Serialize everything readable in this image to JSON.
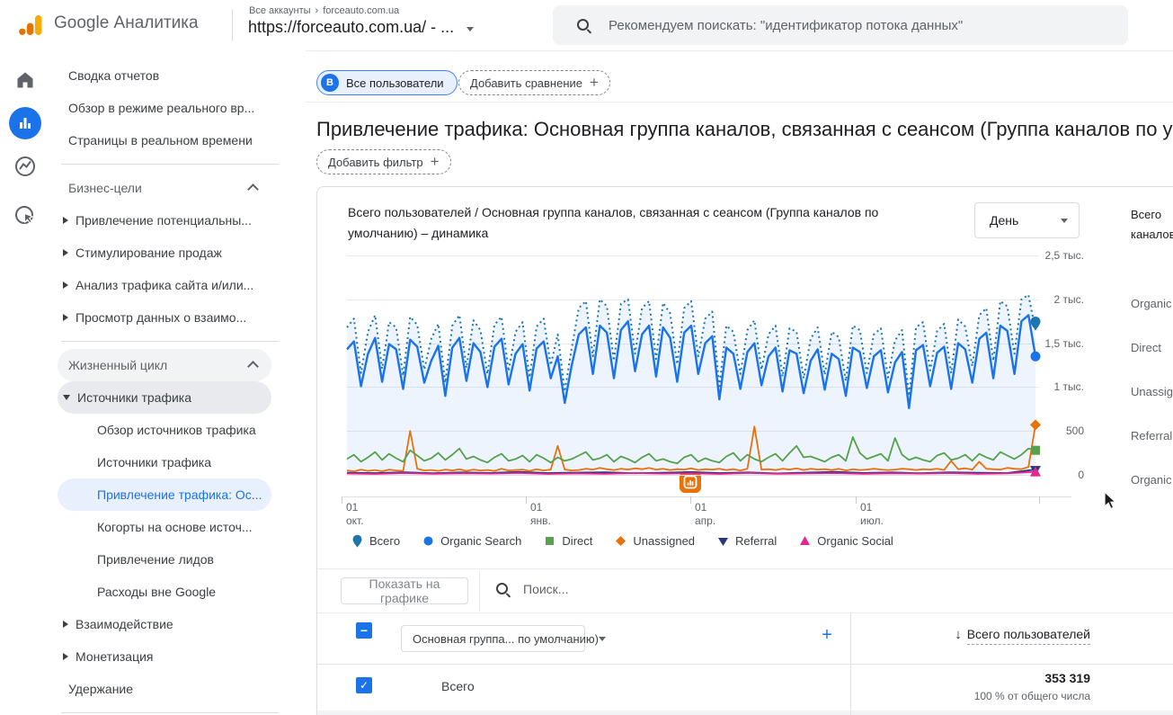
{
  "icons": {
    "plus": "+",
    "sort_desc": "↓",
    "check": "✓",
    "indeterminate": "−",
    "breadcrumb_chevron": "›"
  },
  "topbar": {
    "product": "Google Аналитика",
    "breadcrumb_root": "Все аккаунты",
    "breadcrumb_entity": "forceauto.com.ua",
    "property": "https://forceauto.com.ua/ - ...",
    "search_placeholder": "Рекомендуем поискать: \"идентификатор потока данных\""
  },
  "header": {
    "audience_chip_avatar": "В",
    "audience_chip": "Все пользователи",
    "add_comparison_label": "Добавить сравнение",
    "page_title": "Привлечение трафика: Основная группа каналов, связанная с сеансом (Группа каналов по умолчанию)",
    "add_filter_label": "Добавить фильтр"
  },
  "sidebar": {
    "rows": [
      {
        "type": "item",
        "label": "Сводка отчетов"
      },
      {
        "type": "item",
        "label": "Обзор в режиме реального вр..."
      },
      {
        "type": "item",
        "label": "Страницы в реальном времени"
      },
      {
        "type": "divider"
      },
      {
        "type": "header",
        "label": "Бизнес-цели"
      },
      {
        "type": "item",
        "label": "Привлечение потенциальны...",
        "arrow": "right"
      },
      {
        "type": "item",
        "label": "Стимулирование продаж",
        "arrow": "right"
      },
      {
        "type": "item",
        "label": "Анализ трафика сайта и/или...",
        "arrow": "right"
      },
      {
        "type": "item",
        "label": "Просмотр данных о взаимо...",
        "arrow": "right"
      },
      {
        "type": "divider"
      },
      {
        "type": "header",
        "label": "Жизненный цикл",
        "bg": "light"
      },
      {
        "type": "item",
        "label": "Источники трафика",
        "arrow": "down",
        "bg": "gray"
      },
      {
        "type": "item",
        "label": "Обзор источников трафика",
        "sub": true
      },
      {
        "type": "item",
        "label": "Источники трафика",
        "sub": true
      },
      {
        "type": "item",
        "label": "Привлечение трафика: Ос...",
        "sub": true,
        "selected": true
      },
      {
        "type": "item",
        "label": "Когорты на основе источ...",
        "sub": true
      },
      {
        "type": "item",
        "label": "Привлечение лидов",
        "sub": true
      },
      {
        "type": "item",
        "label": "Расходы вне Google",
        "sub": true
      },
      {
        "type": "item",
        "label": "Взаимодействие",
        "arrow": "right"
      },
      {
        "type": "item",
        "label": "Монетизация",
        "arrow": "right"
      },
      {
        "type": "item",
        "label": "Удержание"
      },
      {
        "type": "divider"
      }
    ]
  },
  "chart_card": {
    "granularity": "День",
    "right_panel": {
      "title": "Всего каналов",
      "items": [
        "Organic Search",
        "Direct",
        "Unassigned",
        "Referral",
        "Organic Social"
      ]
    }
  },
  "chart_data": {
    "type": "line",
    "title": "Всего пользователей / Основная группа каналов, связанная с сеансом (Группа каналов по умолчанию) – динамика",
    "x_axis": {
      "ticks": [
        {
          "f": 0,
          "label": "01 окт."
        },
        {
          "f": 0.264,
          "label": "01 янв."
        },
        {
          "f": 0.5,
          "label": "01 апр."
        },
        {
          "f": 0.737,
          "label": "01 июл."
        },
        {
          "f": 1,
          "label": ""
        }
      ]
    },
    "y_axis": {
      "max": 2500,
      "labels": [
        "0",
        "500",
        "1 тыс.",
        "1,5 тыс.",
        "2 тыс.",
        "2,5 тыс."
      ]
    },
    "annotation": {
      "x_fraction": 0.5,
      "icon": "analytics-badge"
    },
    "series": [
      {
        "name": "Всего",
        "color": "#1d76ac",
        "style": "dotted",
        "marker": "pin",
        "fill": true,
        "values": [
          1680,
          1780,
          1160,
          1630,
          1820,
          1210,
          1740,
          1680,
          1130,
          1800,
          1710,
          1200,
          1550,
          1720,
          1050,
          1700,
          1820,
          1220,
          1760,
          1650,
          1150,
          1710,
          1800,
          1180,
          1630,
          1740,
          1110,
          1690,
          1780,
          1250,
          1600,
          950,
          1450,
          1900,
          1980,
          1350,
          2000,
          1920,
          1300,
          1950,
          2000,
          1380,
          1900,
          1980,
          1320,
          1960,
          1840,
          1260,
          1900,
          1980,
          1350,
          1780,
          1860,
          1010,
          1700,
          1630,
          1150,
          1650,
          1760,
          1200,
          1600,
          1700,
          1120,
          1670,
          1630,
          1100,
          1550,
          1680,
          1140,
          1630,
          1570,
          1070,
          1700,
          1650,
          1160,
          1600,
          1670,
          1110,
          1530,
          1650,
          900,
          1680,
          1740,
          1190,
          1640,
          1720,
          1160,
          1770,
          1690,
          1240,
          1820,
          1900,
          1300,
          1980,
          1920,
          1380,
          2000,
          2050,
          1650
        ]
      },
      {
        "name": "Organic Search",
        "color": "#1a73e8",
        "style": "solid",
        "marker": "circle",
        "values": [
          1430,
          1520,
          1010,
          1380,
          1560,
          1060,
          1490,
          1430,
          980,
          1540,
          1460,
          1050,
          1300,
          1470,
          900,
          1450,
          1560,
          1070,
          1500,
          1400,
          1000,
          1460,
          1550,
          1030,
          1380,
          1490,
          960,
          1440,
          1520,
          1100,
          1350,
          820,
          1250,
          1600,
          1680,
          1150,
          1700,
          1620,
          1100,
          1650,
          1750,
          1180,
          1600,
          1700,
          1120,
          1680,
          1560,
          1060,
          1620,
          1700,
          1150,
          1500,
          1580,
          860,
          1450,
          1380,
          980,
          1400,
          1500,
          1020,
          1350,
          1450,
          950,
          1420,
          1380,
          930,
          1300,
          1430,
          970,
          1380,
          1320,
          900,
          1450,
          1400,
          990,
          1350,
          1420,
          940,
          1280,
          1400,
          760,
          1420,
          1480,
          1010,
          1390,
          1460,
          980,
          1500,
          1430,
          1050,
          1550,
          1620,
          1100,
          1700,
          1640,
          1150,
          1750,
          1820,
          1350
        ]
      },
      {
        "name": "Direct",
        "color": "#57a04c",
        "style": "solid",
        "marker": "square",
        "values": [
          180,
          230,
          150,
          200,
          260,
          170,
          240,
          190,
          150,
          280,
          220,
          160,
          190,
          250,
          170,
          230,
          300,
          180,
          210,
          170,
          140,
          200,
          240,
          160,
          180,
          220,
          150,
          230,
          190,
          140,
          200,
          160,
          180,
          220,
          260,
          170,
          190,
          230,
          150,
          210,
          180,
          140,
          200,
          240,
          160,
          180,
          150,
          130,
          200,
          230,
          150,
          190,
          160,
          140,
          210,
          250,
          160,
          230,
          180,
          150,
          200,
          240,
          160,
          250,
          330,
          200,
          210,
          180,
          150,
          200,
          230,
          160,
          430,
          250,
          180,
          210,
          240,
          160,
          420,
          230,
          170,
          200,
          170,
          150,
          220,
          250,
          170,
          190,
          230,
          160,
          240,
          200,
          170,
          260,
          220,
          180,
          230,
          300,
          280
        ]
      },
      {
        "name": "Unassigned",
        "color": "#e8710a",
        "style": "solid",
        "marker": "diamond",
        "values": [
          50,
          40,
          60,
          45,
          55,
          40,
          60,
          50,
          45,
          500,
          70,
          50,
          55,
          45,
          60,
          50,
          65,
          45,
          60,
          50,
          55,
          45,
          70,
          50,
          55,
          60,
          45,
          65,
          50,
          60,
          330,
          60,
          50,
          55,
          70,
          60,
          80,
          65,
          55,
          70,
          60,
          75,
          65,
          80,
          60,
          70,
          55,
          65,
          60,
          75,
          55,
          65,
          60,
          70,
          55,
          65,
          50,
          70,
          550,
          60,
          65,
          55,
          70,
          60,
          75,
          55,
          70,
          60,
          65,
          55,
          70,
          50,
          65,
          55,
          60,
          70,
          60,
          55,
          60,
          70,
          65,
          55,
          65,
          60,
          70,
          55,
          160,
          65,
          75,
          60,
          150,
          70,
          65,
          60,
          80,
          70,
          65,
          90,
          570
        ]
      },
      {
        "name": "Referral",
        "color": "#28357a",
        "style": "solid",
        "marker": "triangle-down",
        "values": [
          25,
          20,
          30,
          18,
          28,
          22,
          35,
          20,
          26,
          30,
          18,
          24,
          32,
          20,
          28,
          16,
          26,
          34,
          22,
          28,
          18,
          30,
          24,
          20,
          60
        ]
      },
      {
        "name": "Organic Social",
        "color": "#e52592",
        "style": "solid",
        "marker": "triangle-up",
        "values": [
          15,
          10,
          20,
          12,
          18,
          14,
          22,
          10,
          16,
          12,
          20,
          14,
          18,
          10,
          22,
          12,
          16,
          20,
          12,
          18,
          14,
          20,
          12,
          16,
          35
        ]
      }
    ]
  },
  "table": {
    "show_on_chart": "Показать на графике",
    "search_placeholder": "Поиск...",
    "dimension_dropdown": "Основная группа... по умолчанию)",
    "metric_header": "Всего пользователей",
    "rows": [
      {
        "label": "Всего",
        "value": "353 319",
        "share": "100 % от общего числа"
      }
    ]
  }
}
